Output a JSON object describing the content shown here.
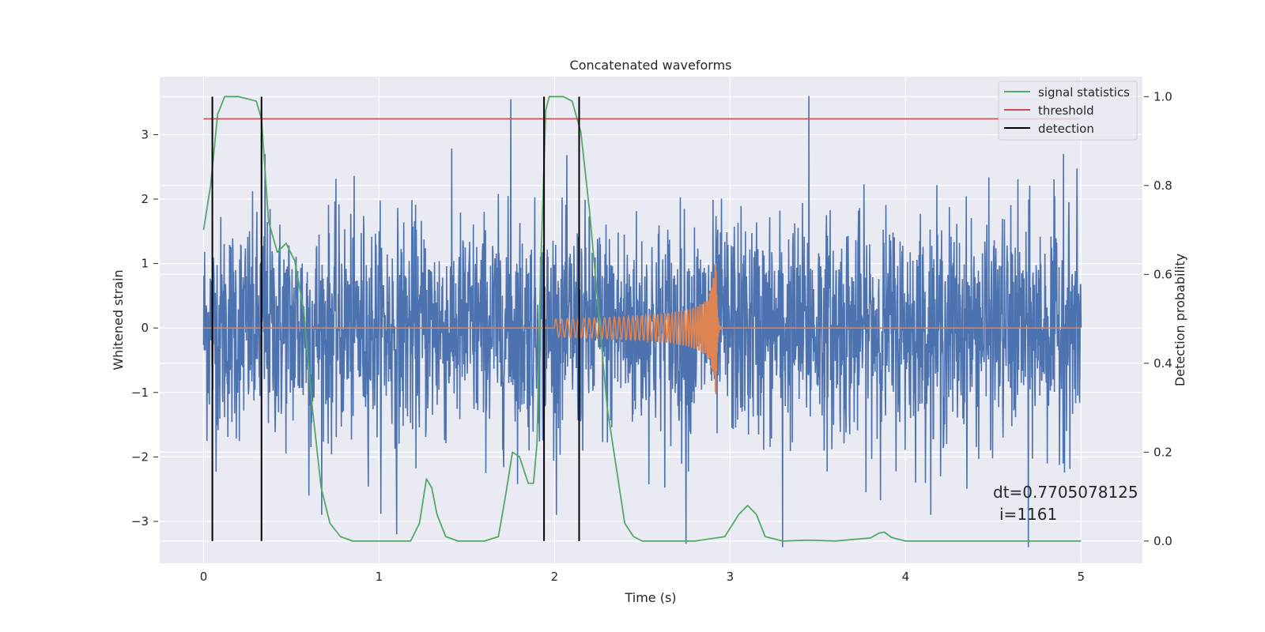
{
  "chart_data": {
    "type": "line",
    "title": "Concatenated waveforms",
    "xlabel": "Time (s)",
    "ylabel": "Whitened strain",
    "ylabel_right": "Detection probability",
    "xlim": [
      -0.25,
      5.35
    ],
    "ylim": [
      -3.65,
      3.9
    ],
    "ylim_right": [
      -0.05,
      1.045
    ],
    "x_ticks": [
      0,
      1,
      2,
      3,
      4,
      5
    ],
    "x_tick_labels": [
      "0",
      "1",
      "2",
      "3",
      "4",
      "5"
    ],
    "y_ticks": [
      -3,
      -2,
      -1,
      0,
      1,
      2,
      3
    ],
    "y_tick_labels": [
      "−3",
      "−2",
      "−1",
      "0",
      "1",
      "2",
      "3"
    ],
    "y2_ticks": [
      0.0,
      0.2,
      0.4,
      0.6,
      0.8,
      1.0
    ],
    "y2_tick_labels": [
      "0.0",
      "0.2",
      "0.4",
      "0.6",
      "0.8",
      "1.0"
    ],
    "grid": true,
    "legend_position": "top-right",
    "series": [
      {
        "name": "",
        "axis": "left",
        "color": "#4c72b0",
        "kind": "noisy-strain",
        "x_range": [
          0,
          5
        ],
        "typical_envelope": [
          -1.5,
          1.5
        ],
        "spike_peaks": [
          {
            "x": 0.35,
            "y": 2.7
          },
          {
            "x": 0.6,
            "y": -2.6
          },
          {
            "x": 1.1,
            "y": -3.2
          },
          {
            "x": 1.75,
            "y": 3.55
          },
          {
            "x": 2.75,
            "y": -3.35
          },
          {
            "x": 3.3,
            "y": -3.4
          },
          {
            "x": 3.45,
            "y": 3.6
          },
          {
            "x": 4.2,
            "y": -2.3
          },
          {
            "x": 4.7,
            "y": -3.4
          },
          {
            "x": 4.9,
            "y": 2.7
          }
        ]
      },
      {
        "name": "",
        "axis": "left",
        "color": "#dd8452",
        "kind": "chirp",
        "x_range": [
          0,
          5
        ],
        "chirp_start": 2.0,
        "chirp_merger": 2.92,
        "amplitude_start": 0.14,
        "amplitude_peak": 1.05
      },
      {
        "name": "signal statistics",
        "axis": "right",
        "color": "#55a868",
        "x": [
          0,
          0.04,
          0.08,
          0.12,
          0.16,
          0.2,
          0.3,
          0.33,
          0.37,
          0.42,
          0.47,
          0.52,
          0.57,
          0.62,
          0.67,
          0.72,
          0.78,
          0.85,
          1.0,
          1.18,
          1.23,
          1.27,
          1.3,
          1.33,
          1.38,
          1.45,
          1.6,
          1.68,
          1.72,
          1.76,
          1.8,
          1.85,
          1.88,
          1.9,
          1.92,
          1.95,
          1.97,
          2.0,
          2.05,
          2.1,
          2.15,
          2.2,
          2.3,
          2.4,
          2.45,
          2.5,
          2.8,
          2.97,
          3.05,
          3.1,
          3.15,
          3.2,
          3.3,
          3.45,
          3.6,
          3.8,
          3.85,
          3.88,
          3.92,
          4.0,
          5.0
        ],
        "y": [
          0.7,
          0.8,
          0.96,
          1.0,
          1.0,
          1.0,
          0.99,
          0.95,
          0.72,
          0.65,
          0.67,
          0.63,
          0.52,
          0.3,
          0.12,
          0.04,
          0.01,
          0.0,
          0.0,
          0.0,
          0.04,
          0.14,
          0.12,
          0.06,
          0.01,
          0.0,
          0.0,
          0.01,
          0.1,
          0.2,
          0.19,
          0.13,
          0.13,
          0.22,
          0.6,
          0.97,
          1.0,
          1.0,
          1.0,
          0.99,
          0.92,
          0.74,
          0.3,
          0.04,
          0.01,
          0.0,
          0.0,
          0.01,
          0.06,
          0.08,
          0.06,
          0.01,
          0.0,
          0.002,
          0.0,
          0.007,
          0.018,
          0.02,
          0.008,
          0.0,
          0.0
        ]
      },
      {
        "name": "threshold",
        "axis": "right",
        "color": "#c44e52",
        "x": [
          0,
          5
        ],
        "y": [
          0.95,
          0.95
        ]
      },
      {
        "name": "detection",
        "axis": "right",
        "color": "#000000",
        "kind": "vlines",
        "x": [
          0.05,
          0.33,
          1.94,
          2.14
        ],
        "y_range": [
          0.0,
          1.0
        ]
      }
    ],
    "annotations": [
      "dt=0.7705078125",
      "i=1161"
    ]
  }
}
